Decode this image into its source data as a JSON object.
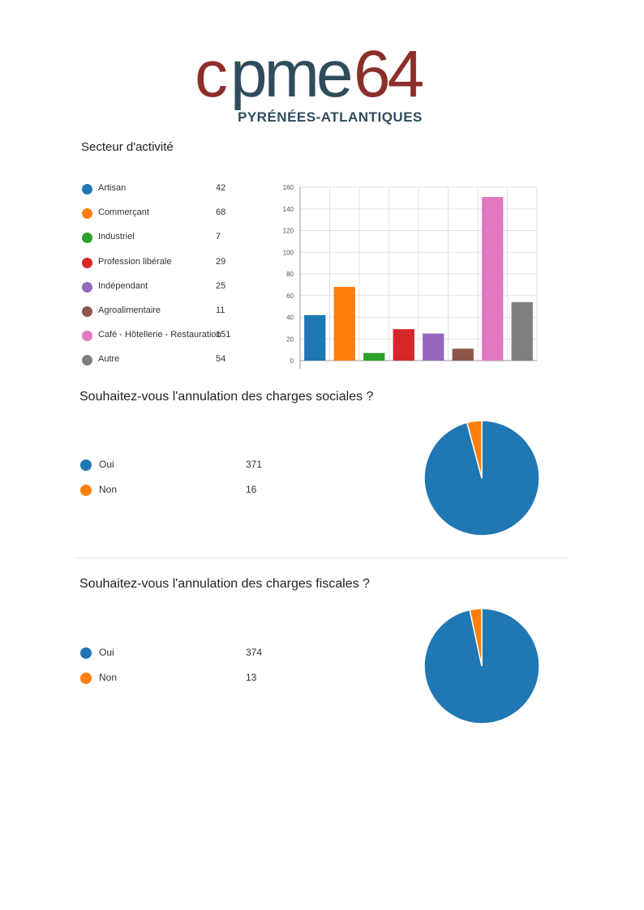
{
  "logo": {
    "word_part1": "c",
    "word_part2": "pme",
    "word_part3": "64",
    "subtitle": "PYRÉNÉES-ATLANTIQUES"
  },
  "colors": {
    "blue": "#1f77b4",
    "orange": "#ff7f0e",
    "green": "#2ca02c",
    "red": "#d62728",
    "purple": "#9467bd",
    "brown": "#8c564b",
    "pink": "#e377c2",
    "gray": "#7f7f7f"
  },
  "chart_data": [
    {
      "type": "bar",
      "title": "Secteur d'activité",
      "categories": [
        "Artisan",
        "Commerçant",
        "Industriel",
        "Profession libérale",
        "Indépendant",
        "Agroalimentaire",
        "Café - Hôtellerie - Restauration",
        "Autre"
      ],
      "values": [
        42,
        68,
        7,
        29,
        25,
        11,
        151,
        54
      ],
      "colors": [
        "#1f77b4",
        "#ff7f0e",
        "#2ca02c",
        "#d62728",
        "#9467bd",
        "#8c564b",
        "#e377c2",
        "#7f7f7f"
      ],
      "ylim": [
        0,
        160
      ],
      "yticks": [
        "0",
        "20",
        "40",
        "60",
        "80",
        "100",
        "120",
        "140",
        "160"
      ],
      "grid": true
    },
    {
      "type": "pie",
      "title": "Souhaitez-vous l'annulation des charges sociales ?",
      "categories": [
        "Oui",
        "Non"
      ],
      "values": [
        371,
        16
      ],
      "colors": [
        "#1f77b4",
        "#ff7f0e"
      ]
    },
    {
      "type": "pie",
      "title": "Souhaitez-vous l'annulation des charges fiscales ?",
      "categories": [
        "Oui",
        "Non"
      ],
      "values": [
        374,
        13
      ],
      "colors": [
        "#1f77b4",
        "#ff7f0e"
      ]
    }
  ]
}
